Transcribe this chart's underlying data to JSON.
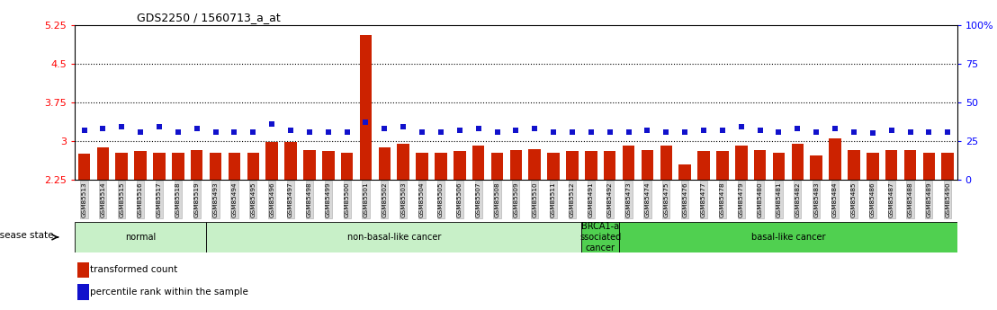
{
  "title": "GDS2250 / 1560713_a_at",
  "samples": [
    "GSM85513",
    "GSM85514",
    "GSM85515",
    "GSM85516",
    "GSM85517",
    "GSM85518",
    "GSM85519",
    "GSM85493",
    "GSM85494",
    "GSM85495",
    "GSM85496",
    "GSM85497",
    "GSM85498",
    "GSM85499",
    "GSM85500",
    "GSM85501",
    "GSM85502",
    "GSM85503",
    "GSM85504",
    "GSM85505",
    "GSM85506",
    "GSM85507",
    "GSM85508",
    "GSM85509",
    "GSM85510",
    "GSM85511",
    "GSM85512",
    "GSM85491",
    "GSM85492",
    "GSM85473",
    "GSM85474",
    "GSM85475",
    "GSM85476",
    "GSM85477",
    "GSM85478",
    "GSM85479",
    "GSM85480",
    "GSM85481",
    "GSM85482",
    "GSM85483",
    "GSM85484",
    "GSM85485",
    "GSM85486",
    "GSM85487",
    "GSM85488",
    "GSM85489",
    "GSM85490"
  ],
  "bar_values": [
    2.75,
    2.88,
    2.78,
    2.8,
    2.78,
    2.78,
    2.82,
    2.78,
    2.78,
    2.78,
    2.98,
    2.98,
    2.82,
    2.8,
    2.78,
    5.05,
    2.88,
    2.95,
    2.78,
    2.78,
    2.8,
    2.92,
    2.78,
    2.82,
    2.85,
    2.78,
    2.8,
    2.8,
    2.8,
    2.92,
    2.82,
    2.92,
    2.55,
    2.8,
    2.8,
    2.92,
    2.82,
    2.78,
    2.95,
    2.72,
    3.05,
    2.82,
    2.78,
    2.82,
    2.82,
    2.78,
    2.78
  ],
  "percentile_values": [
    32,
    33,
    34,
    31,
    34,
    31,
    33,
    31,
    31,
    31,
    36,
    32,
    31,
    31,
    31,
    37,
    33,
    34,
    31,
    31,
    32,
    33,
    31,
    32,
    33,
    31,
    31,
    31,
    31,
    31,
    32,
    31,
    31,
    32,
    32,
    34,
    32,
    31,
    33,
    31,
    33,
    31,
    30,
    32,
    31,
    31,
    31
  ],
  "groups": [
    {
      "label": "normal",
      "start": 0,
      "end": 6,
      "color": "#c8f0c8"
    },
    {
      "label": "non-basal-like cancer",
      "start": 7,
      "end": 26,
      "color": "#c8f0c8"
    },
    {
      "label": "BRCA1-a\nssociated\ncancer",
      "start": 27,
      "end": 28,
      "color": "#50d050"
    },
    {
      "label": "basal-like cancer",
      "start": 29,
      "end": 46,
      "color": "#50d050"
    }
  ],
  "ylim_left": [
    2.25,
    5.25
  ],
  "ylim_right": [
    0,
    100
  ],
  "yticks_left": [
    2.25,
    3.0,
    3.75,
    4.5,
    5.25
  ],
  "ytick_labels_left": [
    "2.25",
    "3",
    "3.75",
    "4.5",
    "5.25"
  ],
  "yticks_right": [
    0,
    25,
    50,
    75,
    100
  ],
  "ytick_labels_right": [
    "0",
    "25",
    "50",
    "75",
    "100%"
  ],
  "hlines": [
    3.0,
    3.75,
    4.5
  ],
  "bar_color": "#cc2200",
  "percentile_color": "#1111cc",
  "bar_bottom": 2.25
}
